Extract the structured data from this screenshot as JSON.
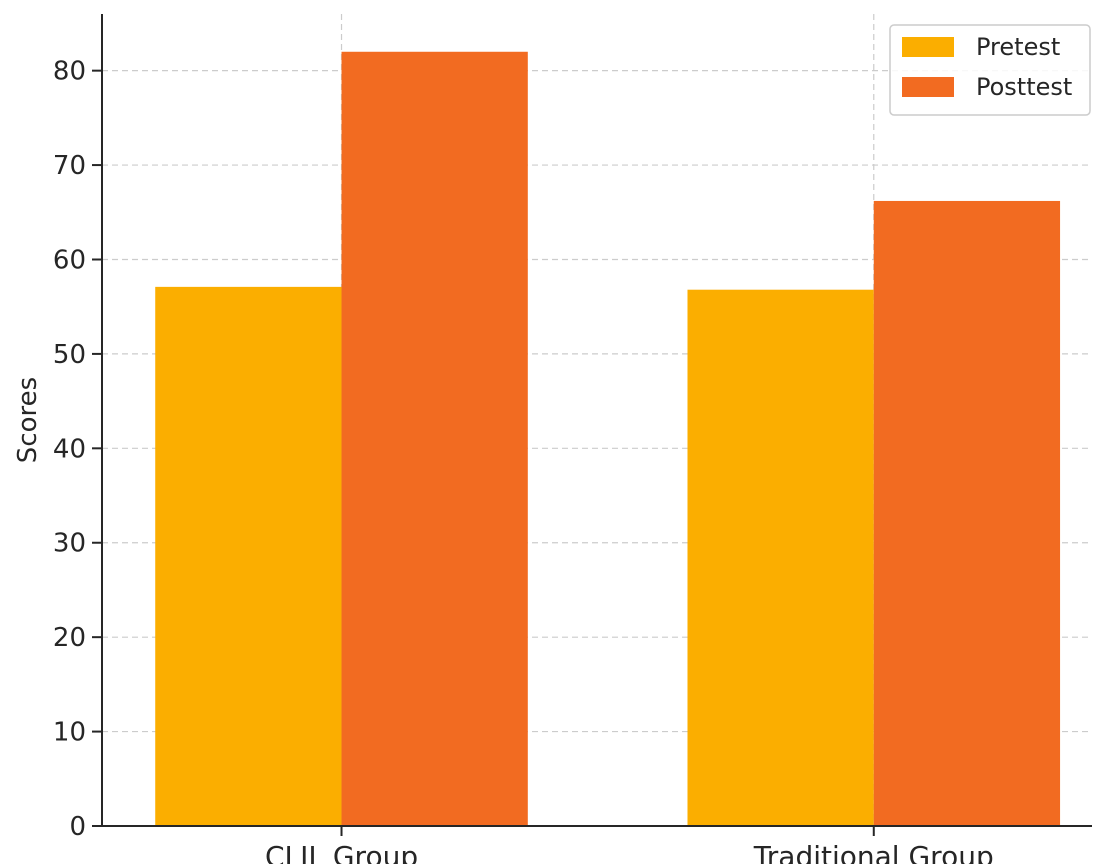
{
  "chart_data": {
    "type": "bar",
    "title": "",
    "xlabel": "",
    "ylabel": "Scores",
    "categories": [
      "CLIL Group",
      "Traditional Group"
    ],
    "series": [
      {
        "name": "Pretest",
        "values": [
          57.1,
          56.8
        ],
        "color": "#fbae00"
      },
      {
        "name": "Posttest",
        "values": [
          82.0,
          66.2
        ],
        "color": "#f26b21"
      }
    ],
    "ylim": [
      0,
      86
    ],
    "yticks": [
      0,
      10,
      20,
      30,
      40,
      50,
      60,
      70,
      80
    ],
    "grid": true,
    "legend_position": "top-right"
  }
}
